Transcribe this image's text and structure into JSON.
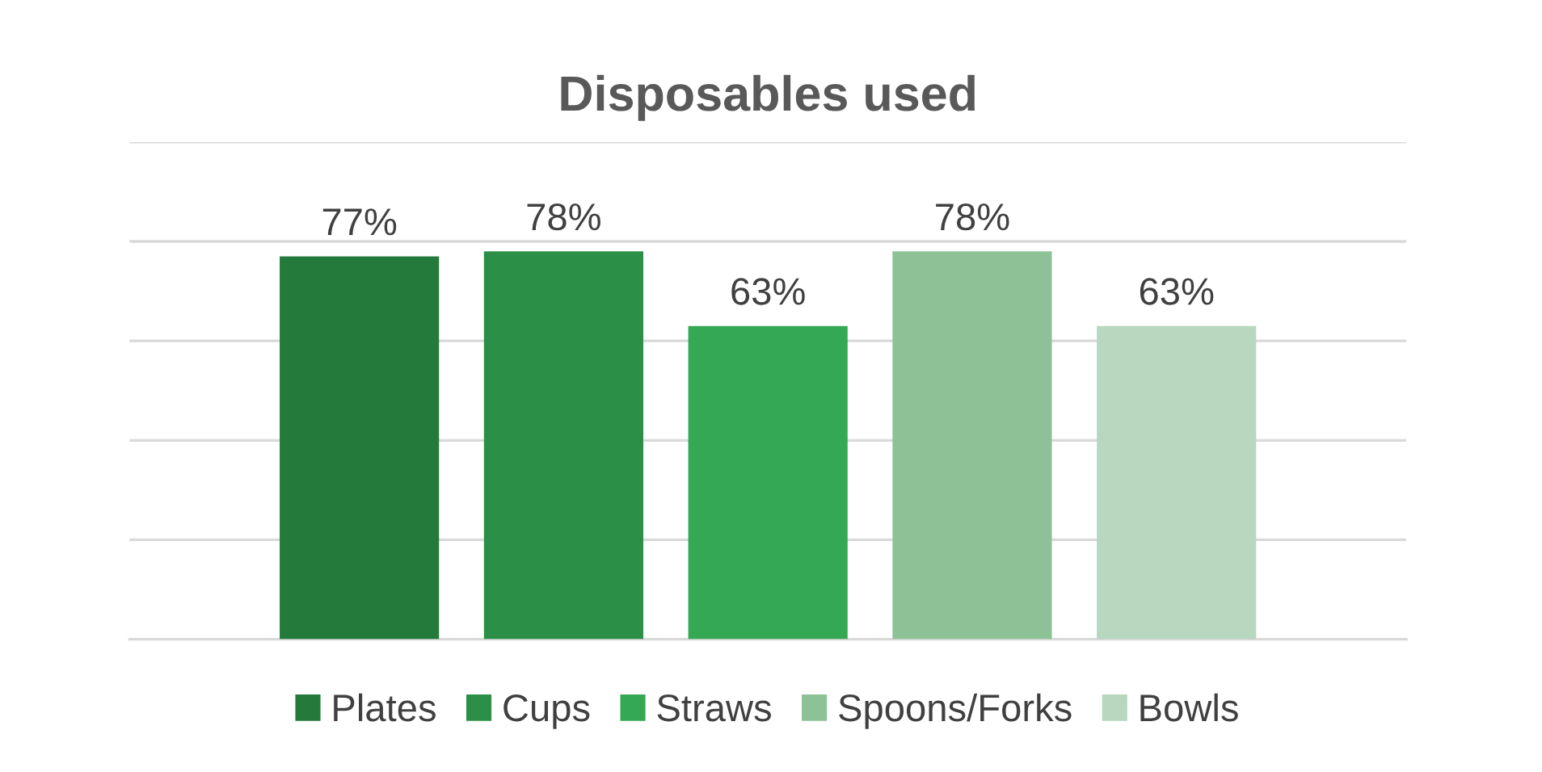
{
  "chart_data": {
    "type": "bar",
    "title": "Disposables used",
    "categories": [
      null
    ],
    "series": [
      {
        "name": "Plates",
        "color": "#237a3b",
        "values": [
          77
        ],
        "value_labels": [
          "77%"
        ]
      },
      {
        "name": "Cups",
        "color": "#2b8f47",
        "values": [
          78
        ],
        "value_labels": [
          "78%"
        ]
      },
      {
        "name": "Straws",
        "color": "#34a853",
        "values": [
          63
        ],
        "value_labels": [
          "63%"
        ]
      },
      {
        "name": "Spoons/Forks",
        "color": "#8dc196",
        "values": [
          78
        ],
        "value_labels": [
          "78%"
        ]
      },
      {
        "name": "Bowls",
        "color": "#b7d7be",
        "values": [
          63
        ],
        "value_labels": [
          "63%"
        ]
      }
    ],
    "ylim": [
      0,
      100
    ],
    "yticks": [
      {
        "value": 0,
        "label": null
      },
      {
        "value": 20,
        "label": null
      },
      {
        "value": 40,
        "label": null
      },
      {
        "value": 60,
        "label": null
      },
      {
        "value": 80,
        "label": null
      },
      {
        "value": 100,
        "label": null
      }
    ],
    "grid": "y",
    "legend": "bottom"
  }
}
